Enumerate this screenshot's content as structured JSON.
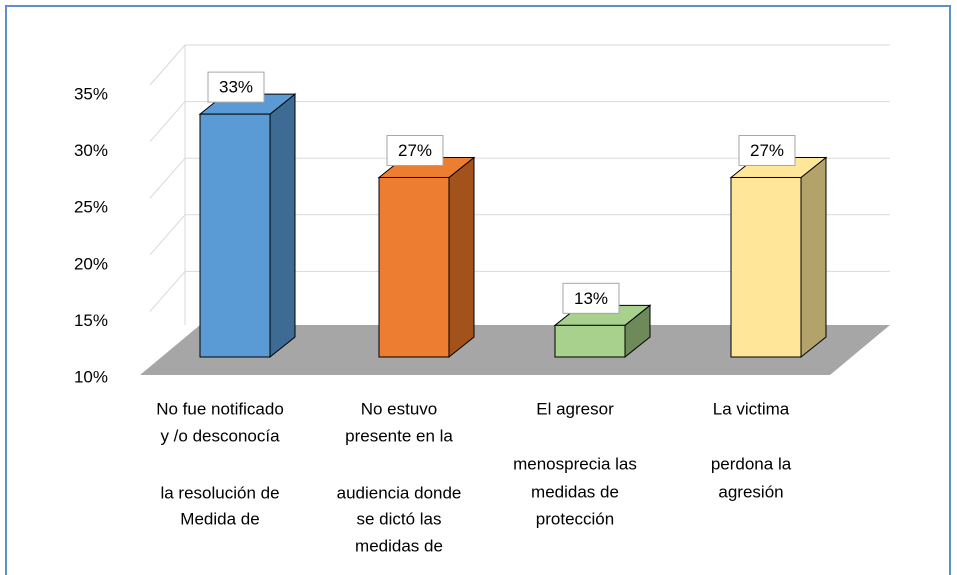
{
  "chart_data": {
    "type": "bar3d",
    "categories": [
      [
        "No fue notificado",
        "y /o desconocía",
        "la resolución de",
        "Medida de"
      ],
      [
        "No estuvo",
        "presente en la",
        "audiencia donde",
        "se dictó las",
        "medidas de"
      ],
      [
        "El agresor",
        "menosprecia las",
        "medidas de",
        "protección"
      ],
      [
        "La victima",
        "perdona la",
        "agresión"
      ]
    ],
    "values": [
      33,
      27,
      13,
      27
    ],
    "value_labels": [
      "33%",
      "27%",
      "13%",
      "27%"
    ],
    "colors": [
      "#5b9bd5",
      "#ed7d31",
      "#a9d18e",
      "#ffe699"
    ],
    "side_colors": [
      "#3d6b94",
      "#a4521c",
      "#6f8a5a",
      "#b3a26a"
    ],
    "ylim": [
      10,
      35
    ],
    "yticks": [
      {
        "value": 10,
        "label": "10%"
      },
      {
        "value": 15,
        "label": "15%"
      },
      {
        "value": 20,
        "label": "20%"
      },
      {
        "value": 25,
        "label": "25%"
      },
      {
        "value": 30,
        "label": "30%"
      },
      {
        "value": 35,
        "label": "35%"
      }
    ],
    "grid": true
  }
}
